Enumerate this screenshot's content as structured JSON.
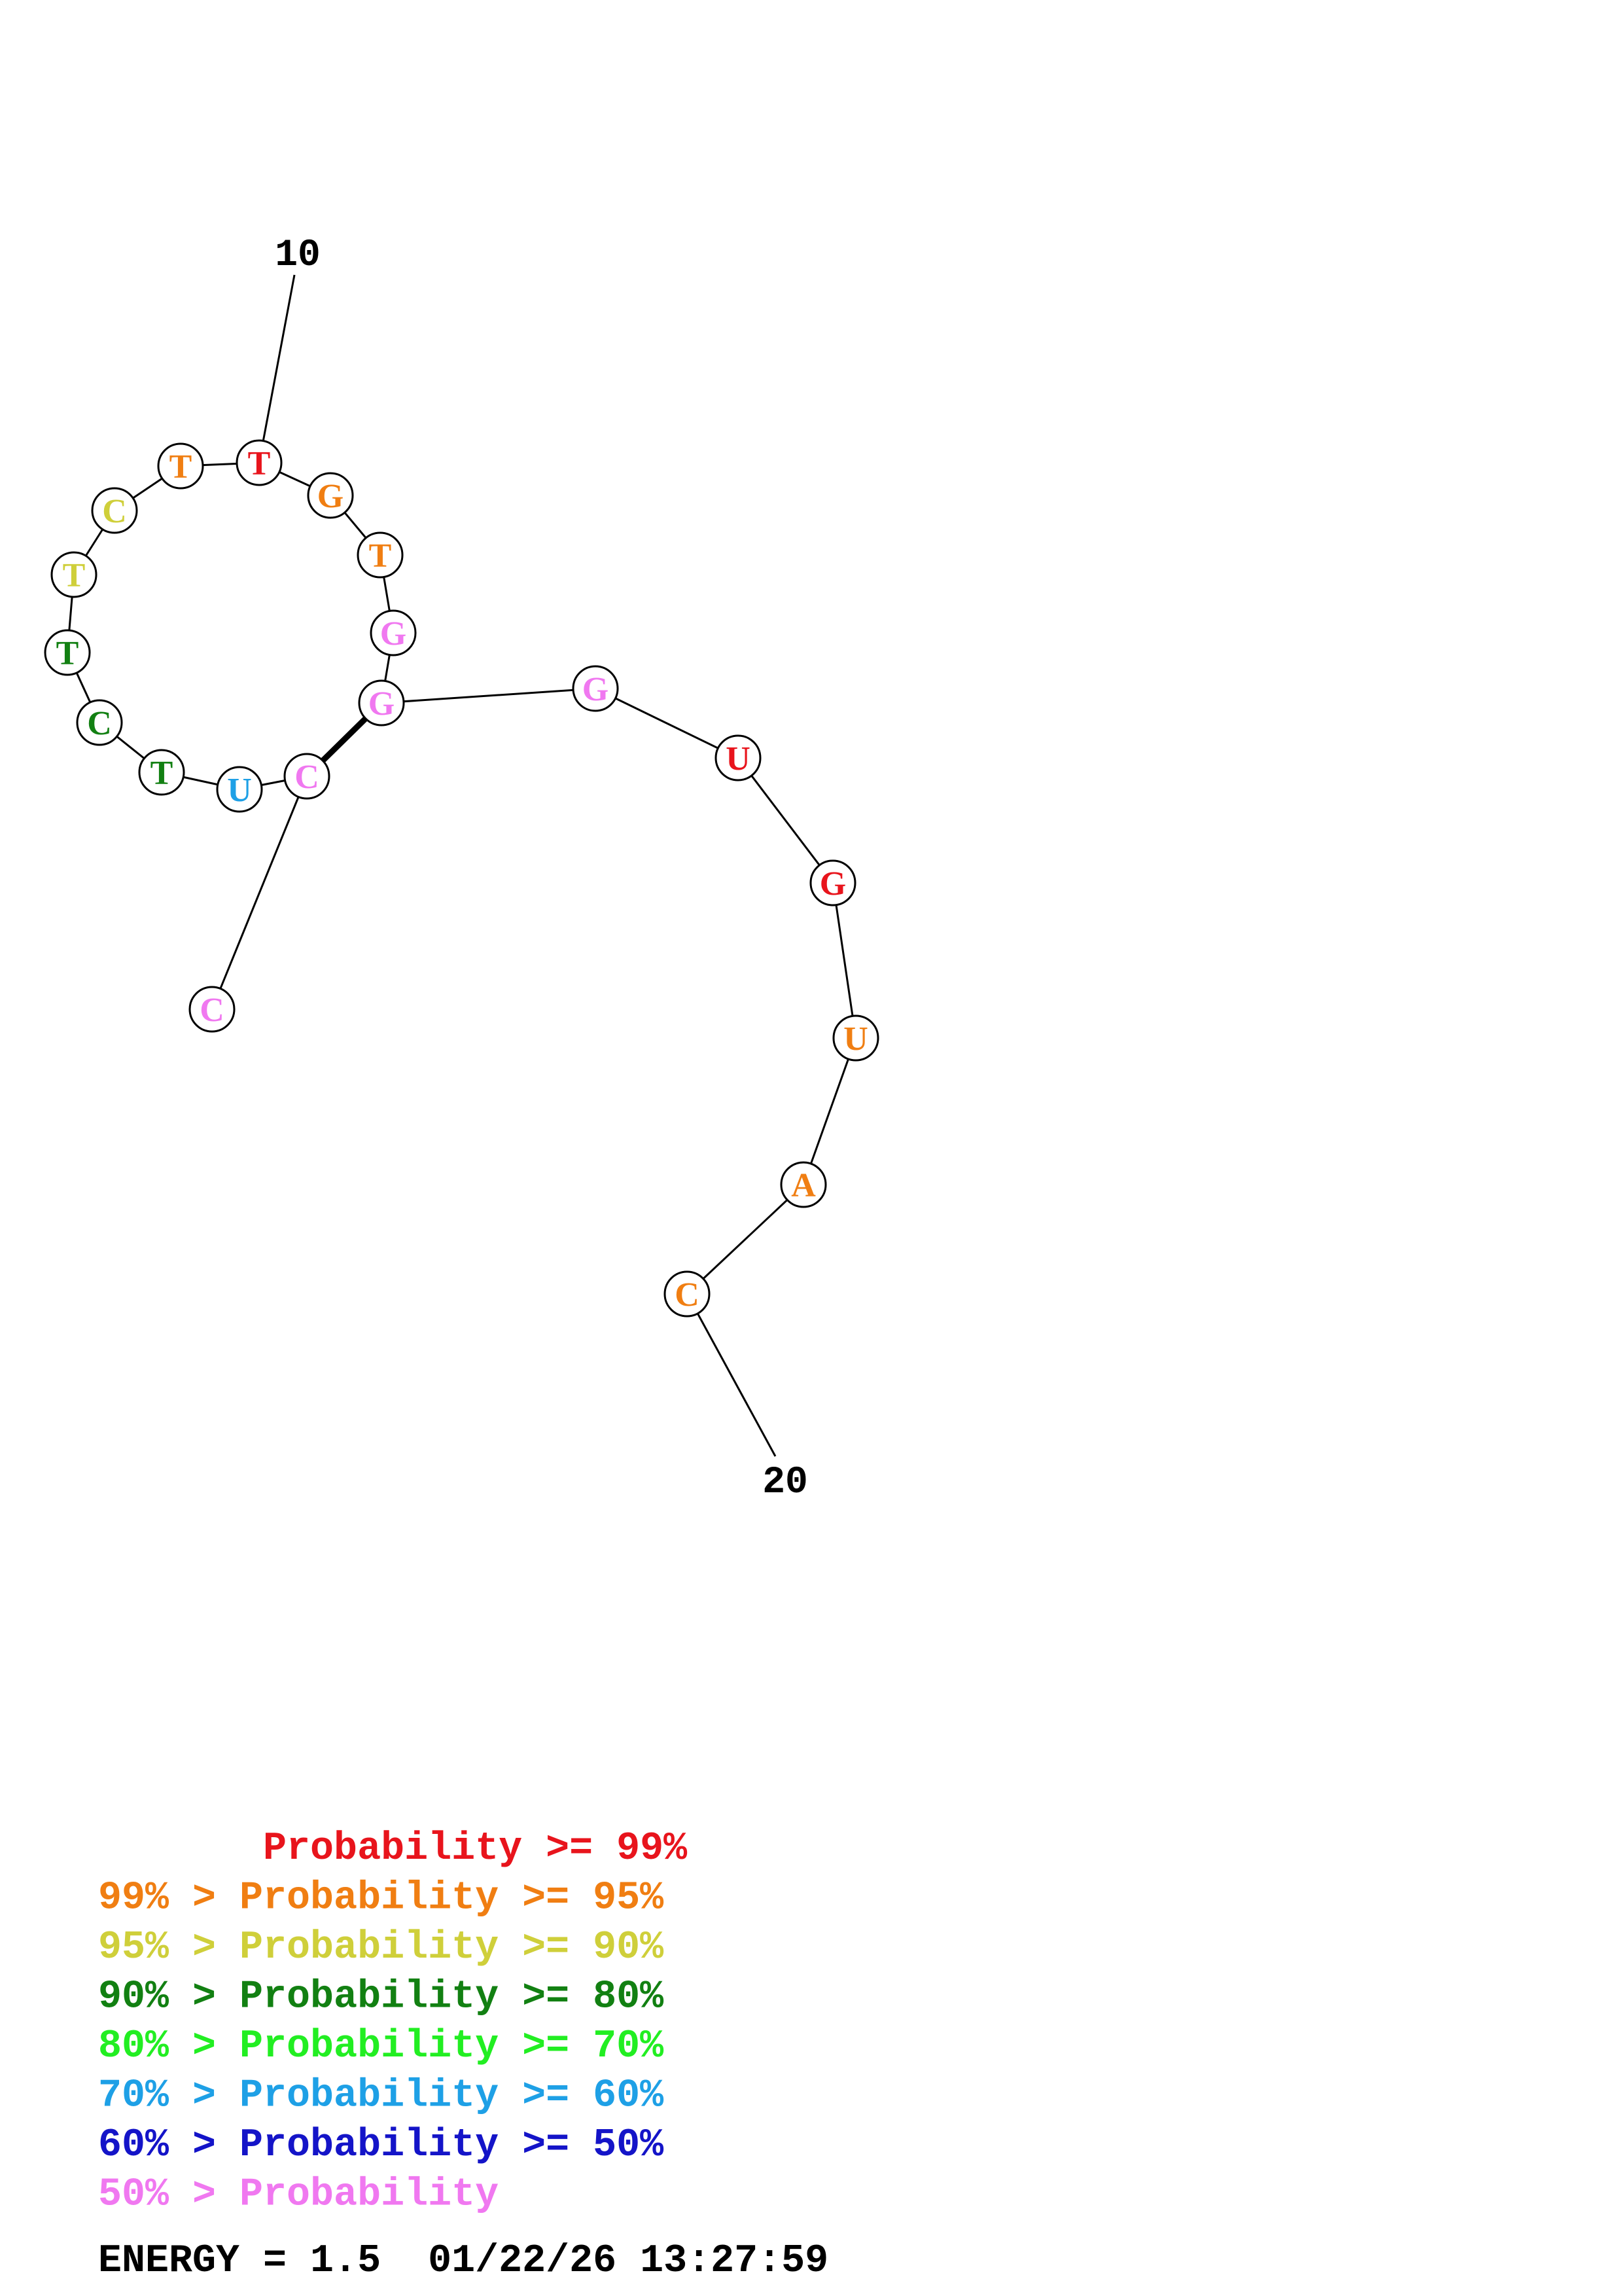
{
  "colors": {
    "p99": "#e8141c",
    "p95": "#f07e12",
    "p90": "#cfcf3a",
    "p80": "#128012",
    "p70": "#22ee22",
    "p60": "#1ea0e6",
    "p50": "#1414c8",
    "plow": "#f078f0"
  },
  "nucleotides": [
    {
      "base": "C",
      "color": "plow"
    },
    {
      "base": "C",
      "color": "plow"
    },
    {
      "base": "U",
      "color": "p60"
    },
    {
      "base": "T",
      "color": "p80"
    },
    {
      "base": "C",
      "color": "p80"
    },
    {
      "base": "T",
      "color": "p80"
    },
    {
      "base": "T",
      "color": "p90"
    },
    {
      "base": "C",
      "color": "p90"
    },
    {
      "base": "T",
      "color": "p95"
    },
    {
      "base": "T",
      "color": "p99"
    },
    {
      "base": "G",
      "color": "p95"
    },
    {
      "base": "T",
      "color": "p95"
    },
    {
      "base": "G",
      "color": "plow"
    },
    {
      "base": "G",
      "color": "plow"
    },
    {
      "base": "G",
      "color": "plow"
    },
    {
      "base": "U",
      "color": "p99"
    },
    {
      "base": "G",
      "color": "p99"
    },
    {
      "base": "U",
      "color": "p95"
    },
    {
      "base": "A",
      "color": "p95"
    },
    {
      "base": "C",
      "color": "p95"
    }
  ],
  "pairs": [
    [
      1,
      13
    ]
  ],
  "index_labels": [
    {
      "nucleotide": 9,
      "text": "10"
    },
    {
      "nucleotide": 19,
      "text": "20"
    }
  ],
  "legend": [
    {
      "prefix": "       ",
      "text": "Probability >= 99%",
      "color": "p99"
    },
    {
      "prefix": "",
      "text": "99% > Probability >= 95%",
      "color": "p95"
    },
    {
      "prefix": "",
      "text": "95% > Probability >= 90%",
      "color": "p90"
    },
    {
      "prefix": "",
      "text": "90% > Probability >= 80%",
      "color": "p80"
    },
    {
      "prefix": "",
      "text": "80% > Probability >= 70%",
      "color": "p70"
    },
    {
      "prefix": "",
      "text": "70% > Probability >= 60%",
      "color": "p60"
    },
    {
      "prefix": "",
      "text": "60% > Probability >= 50%",
      "color": "p50"
    },
    {
      "prefix": "",
      "text": "50% > Probability",
      "color": "plow"
    }
  ],
  "energy": "ENERGY = 1.5  01/22/26 13:27:59"
}
